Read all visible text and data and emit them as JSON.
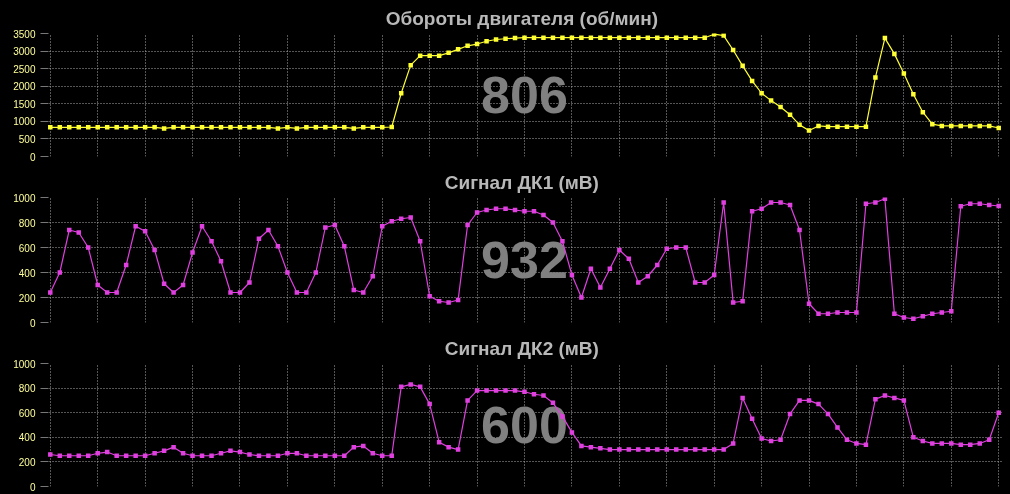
{
  "chart_data": [
    {
      "type": "line",
      "title": "Обороты двигателя  (об/мин)",
      "annotations": [
        "806"
      ],
      "categories": [
        null,
        null,
        null,
        null,
        null,
        null,
        null,
        null,
        null,
        null,
        null,
        null,
        null,
        null,
        null,
        null,
        null,
        null,
        null,
        null,
        null,
        null,
        null,
        null,
        null,
        null,
        null,
        null,
        null,
        null,
        null,
        null,
        null,
        null,
        null,
        null,
        null,
        null,
        null,
        null,
        null,
        null,
        null,
        null,
        null,
        null,
        null,
        null,
        null,
        null,
        null,
        null,
        null,
        null,
        null,
        null,
        null,
        null,
        null,
        null,
        null,
        null,
        null,
        null,
        null,
        null,
        null,
        null,
        null,
        null,
        null,
        null,
        null,
        null,
        null,
        null,
        null,
        null,
        null,
        null,
        null,
        null,
        null,
        null,
        null,
        null,
        null,
        null,
        null,
        null,
        null,
        null,
        null,
        null,
        null,
        null,
        null,
        null,
        null,
        null,
        null
      ],
      "series": [
        {
          "color": "#ffff33",
          "values": [
            830,
            830,
            830,
            830,
            830,
            830,
            830,
            830,
            830,
            830,
            830,
            830,
            800,
            830,
            830,
            830,
            830,
            830,
            830,
            830,
            830,
            830,
            830,
            830,
            800,
            830,
            800,
            830,
            830,
            830,
            830,
            830,
            800,
            830,
            830,
            830,
            840,
            1800,
            2600,
            2870,
            2870,
            2870,
            2950,
            3050,
            3150,
            3200,
            3280,
            3330,
            3350,
            3370,
            3380,
            3380,
            3380,
            3380,
            3380,
            3380,
            3380,
            3380,
            3380,
            3380,
            3380,
            3380,
            3380,
            3380,
            3380,
            3380,
            3380,
            3380,
            3380,
            3380,
            3480,
            3440,
            3030,
            2580,
            2150,
            1800,
            1590,
            1410,
            1190,
            900,
            740,
            870,
            850,
            850,
            850,
            850,
            850,
            2250,
            3370,
            2920,
            2360,
            1770,
            1260,
            920,
            870,
            870,
            870,
            870,
            870,
            870,
            810
          ]
        }
      ],
      "ylim": [
        0,
        3500
      ],
      "yticks": [
        0,
        500,
        1000,
        1500,
        2000,
        2500,
        3000,
        3500
      ],
      "grid": true,
      "marker": "square",
      "tick_labels": "y"
    },
    {
      "type": "line",
      "title": "Сигнал ДК1  (мВ)",
      "annotations": [
        "932"
      ],
      "categories": [
        null,
        null,
        null,
        null,
        null,
        null,
        null,
        null,
        null,
        null,
        null,
        null,
        null,
        null,
        null,
        null,
        null,
        null,
        null,
        null,
        null,
        null,
        null,
        null,
        null,
        null,
        null,
        null,
        null,
        null,
        null,
        null,
        null,
        null,
        null,
        null,
        null,
        null,
        null,
        null,
        null,
        null,
        null,
        null,
        null,
        null,
        null,
        null,
        null,
        null,
        null,
        null,
        null,
        null,
        null,
        null,
        null,
        null,
        null,
        null,
        null,
        null,
        null,
        null,
        null,
        null,
        null,
        null,
        null,
        null,
        null,
        null,
        null,
        null,
        null,
        null,
        null,
        null,
        null,
        null,
        null,
        null,
        null,
        null,
        null,
        null,
        null,
        null,
        null,
        null,
        null,
        null,
        null,
        null,
        null,
        null,
        null,
        null,
        null,
        null,
        null
      ],
      "series": [
        {
          "color": "#e040e0",
          "values": [
            240,
            400,
            740,
            720,
            600,
            300,
            240,
            240,
            460,
            770,
            730,
            580,
            310,
            240,
            300,
            560,
            770,
            650,
            490,
            240,
            240,
            320,
            670,
            740,
            610,
            400,
            240,
            240,
            400,
            760,
            780,
            610,
            260,
            240,
            370,
            770,
            810,
            830,
            840,
            650,
            210,
            170,
            160,
            180,
            780,
            880,
            900,
            910,
            910,
            900,
            890,
            890,
            860,
            800,
            650,
            380,
            200,
            430,
            280,
            430,
            580,
            510,
            320,
            370,
            460,
            590,
            600,
            600,
            320,
            320,
            380,
            960,
            160,
            170,
            890,
            910,
            960,
            960,
            940,
            740,
            150,
            70,
            70,
            80,
            80,
            80,
            950,
            960,
            990,
            70,
            40,
            30,
            50,
            70,
            80,
            90,
            930,
            950,
            950,
            940,
            932
          ]
        }
      ],
      "ylim": [
        0,
        1000
      ],
      "yticks": [
        0,
        200,
        400,
        600,
        800,
        1000
      ],
      "grid": true,
      "marker": "square",
      "tick_labels": "y"
    },
    {
      "type": "line",
      "title": "Сигнал ДК2  (мВ)",
      "annotations": [
        "600"
      ],
      "categories": [
        null,
        null,
        null,
        null,
        null,
        null,
        null,
        null,
        null,
        null,
        null,
        null,
        null,
        null,
        null,
        null,
        null,
        null,
        null,
        null,
        null,
        null,
        null,
        null,
        null,
        null,
        null,
        null,
        null,
        null,
        null,
        null,
        null,
        null,
        null,
        null,
        null,
        null,
        null,
        null,
        null,
        null,
        null,
        null,
        null,
        null,
        null,
        null,
        null,
        null,
        null,
        null,
        null,
        null,
        null,
        null,
        null,
        null,
        null,
        null,
        null,
        null,
        null,
        null,
        null,
        null,
        null,
        null,
        null,
        null,
        null,
        null,
        null,
        null,
        null,
        null,
        null,
        null,
        null,
        null,
        null,
        null,
        null,
        null,
        null,
        null,
        null,
        null,
        null,
        null,
        null,
        null,
        null,
        null,
        null,
        null,
        null,
        null,
        null,
        null,
        null
      ],
      "series": [
        {
          "color": "#e040e0",
          "values": [
            260,
            250,
            250,
            250,
            250,
            270,
            280,
            250,
            250,
            250,
            250,
            270,
            290,
            320,
            270,
            250,
            250,
            250,
            270,
            290,
            280,
            260,
            250,
            250,
            250,
            270,
            270,
            250,
            250,
            250,
            250,
            250,
            320,
            330,
            270,
            250,
            250,
            810,
            830,
            810,
            670,
            360,
            320,
            300,
            700,
            780,
            780,
            780,
            780,
            780,
            770,
            750,
            740,
            680,
            570,
            440,
            330,
            320,
            310,
            300,
            300,
            300,
            300,
            300,
            300,
            300,
            300,
            300,
            300,
            300,
            300,
            300,
            350,
            720,
            550,
            390,
            370,
            380,
            590,
            700,
            700,
            670,
            590,
            480,
            380,
            350,
            340,
            710,
            740,
            720,
            700,
            400,
            370,
            350,
            350,
            350,
            340,
            340,
            350,
            380,
            600
          ]
        }
      ],
      "ylim": [
        0,
        1000
      ],
      "yticks": [
        0,
        200,
        400,
        600,
        800,
        1000
      ],
      "grid": true,
      "marker": "square",
      "tick_labels": "y"
    }
  ]
}
